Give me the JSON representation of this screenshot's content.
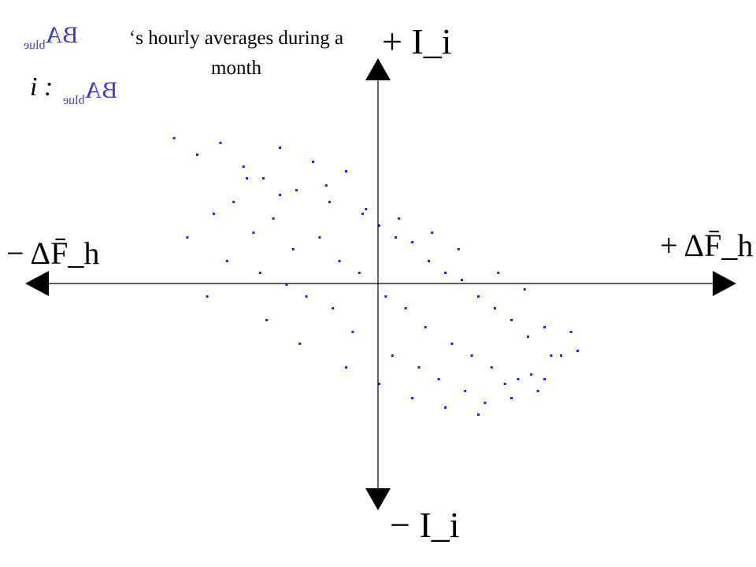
{
  "title": {
    "mirrored_ba": "BA",
    "mirrored_sub": "blue",
    "text_line1": "‘s hourly averages during a",
    "text_line2": "month"
  },
  "legend_label": {
    "prefix": "i :",
    "mirrored_ba": "BA",
    "mirrored_sub": "blue"
  },
  "axis_labels": {
    "top": "+ I_i",
    "bottom": "− I_i",
    "left": "− ΔF̄_h",
    "right": "+ ΔF̄_h"
  },
  "colors": {
    "points": "#1f1fff",
    "axes": "#000000"
  },
  "chart_data": {
    "type": "scatter",
    "xlim": [
      -1,
      1
    ],
    "ylim": [
      -1,
      1
    ],
    "axes": "cross at origin with arrowheads",
    "grid": false,
    "trend": "negative correlation between x and y",
    "x": [
      -0.62,
      -0.55,
      -0.48,
      -0.41,
      -0.35,
      -0.3,
      -0.25,
      -0.2,
      -0.15,
      -0.1,
      -0.05,
      0.0,
      0.05,
      0.1,
      0.15,
      0.2,
      0.25,
      0.3,
      0.35,
      0.4,
      0.45,
      0.5,
      0.55,
      0.6,
      -0.5,
      -0.44,
      -0.38,
      -0.32,
      -0.26,
      -0.18,
      -0.12,
      -0.06,
      0.02,
      0.08,
      0.14,
      0.22,
      0.28,
      0.34,
      0.42,
      0.48,
      -0.58,
      -0.46,
      -0.36,
      -0.28,
      -0.22,
      -0.14,
      -0.08,
      0.04,
      0.12,
      0.18,
      0.26,
      0.32,
      0.38,
      0.46,
      0.52,
      0.58,
      -0.4,
      -0.3,
      -0.16,
      -0.04,
      0.06,
      0.16,
      0.24,
      0.36,
      0.44,
      -0.52,
      -0.34,
      -0.24,
      -0.1,
      0.0,
      0.1,
      0.2,
      0.3,
      0.4,
      0.5
    ],
    "y": [
      0.62,
      0.55,
      0.6,
      0.5,
      0.45,
      0.58,
      0.4,
      0.52,
      0.35,
      0.48,
      0.3,
      0.25,
      0.2,
      0.18,
      0.1,
      0.05,
      0.02,
      -0.05,
      -0.1,
      -0.15,
      -0.22,
      -0.18,
      -0.3,
      -0.28,
      0.3,
      0.35,
      0.22,
      0.28,
      0.15,
      0.2,
      0.1,
      0.05,
      -0.05,
      -0.1,
      -0.18,
      -0.25,
      -0.3,
      -0.35,
      -0.4,
      -0.45,
      0.2,
      0.1,
      0.05,
      0.0,
      -0.05,
      -0.1,
      -0.2,
      -0.3,
      -0.35,
      -0.4,
      -0.45,
      -0.5,
      -0.42,
      -0.38,
      -0.3,
      -0.2,
      0.45,
      0.38,
      0.42,
      0.32,
      0.28,
      0.22,
      0.15,
      0.05,
      -0.02,
      -0.05,
      -0.15,
      -0.25,
      -0.35,
      -0.42,
      -0.48,
      -0.52,
      -0.55,
      -0.48,
      -0.4
    ]
  }
}
